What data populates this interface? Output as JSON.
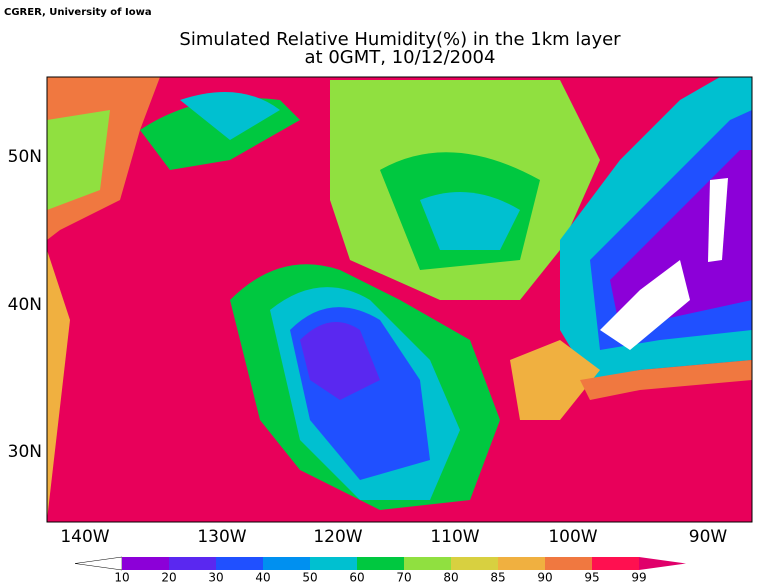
{
  "header": {
    "credit": "CGRER, University of Iowa",
    "title": [
      "Simulated Relative Humidity(%) in the 1km layer",
      "at 0GMT, 10/12/2004"
    ]
  },
  "map": {
    "longitude_labels": [
      "140W",
      "130W",
      "120W",
      "110W",
      "100W",
      "90W"
    ],
    "latitude_labels": [
      "50N",
      "40N",
      "30N"
    ]
  },
  "colorbar": {
    "labels": [
      "10",
      "20",
      "30",
      "40",
      "50",
      "60",
      "70",
      "80",
      "85",
      "90",
      "95",
      "99"
    ],
    "colors": [
      "#ffffff",
      "#8c00d8",
      "#5a28f0",
      "#2050ff",
      "#0090f0",
      "#00c0d0",
      "#00c840",
      "#90e040",
      "#d8d040",
      "#f0b040",
      "#f07840",
      "#ff1050",
      "#e0006a"
    ]
  }
}
